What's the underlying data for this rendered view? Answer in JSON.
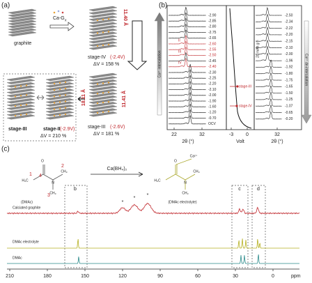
{
  "a": {
    "label": "(a)",
    "graphite": "graphite",
    "reagent": "Ca-G",
    "reagent_sub": "x",
    "stage4": {
      "name": "stage-IV",
      "voltage": "(-2.4V)",
      "dv": "ΔV = 158 %",
      "spacing": "11.40 Å"
    },
    "stage3": {
      "name": "stage-III",
      "voltage": "(-2.6V)",
      "dv": "ΔV = 181 %",
      "spacing": "11.41 Å",
      "spacing2": "18.11 Å"
    },
    "stage2": {
      "name": "stage-II",
      "voltage": "(-2.9V)",
      "dv": "ΔV = 210 %",
      "other": "stage-III"
    }
  },
  "b": {
    "label": "(b)",
    "left_voltages": [
      "-2.90",
      "-2.85",
      "-2.80",
      "-2.75",
      "-2.65",
      "-2.60",
      "-2.55",
      "-2.50",
      "-2.45",
      "-2.40",
      "-2.30",
      "-2.25",
      "-2.20",
      "-2.10",
      "-2.00",
      "-1.90",
      "-1.60",
      "-1.20",
      "-0.70",
      "OCV"
    ],
    "right_voltages": [
      "-2.50",
      "-2.34",
      "-2.22",
      "-2.20",
      "-2.15",
      "-2.10",
      "-2.00",
      "-1.96",
      "-1.92",
      "-1.80",
      "-1.75",
      "-1.65",
      "-1.50",
      "-1.25",
      "-1.07",
      "-0.65",
      "-0.20"
    ],
    "roman": [
      "II",
      "III",
      "IV"
    ],
    "intercalation": "Ca²⁺ intercalation",
    "deintercalation": "Ca²⁺ de-intercalation",
    "stage_marks": [
      "stage-III",
      "stage-IV"
    ],
    "capacity": "20 mAh g⁻¹",
    "xlabel": "2θ (°)",
    "vlabel": "Volt",
    "left_ticks": [
      22,
      32
    ],
    "volt_ticks": [
      -3,
      0
    ],
    "right_ticks": [
      32
    ]
  },
  "c": {
    "label": "(c)",
    "dmac": "(DMAc)",
    "reagent": "Ca(BH₄)₂",
    "product": "(DMAc electrolyte)",
    "atoms": [
      "1",
      "2",
      "3",
      "4"
    ],
    "mol_left": [
      "O",
      "N",
      "H₃C",
      "CH₃",
      "CH₃"
    ],
    "mol_right": [
      "O",
      "Ca²⁺",
      "N",
      "H₃C",
      "CH₃",
      "CH₃"
    ],
    "traces": [
      "Calciated graphite",
      "DMAc electrolyte",
      "DMAc"
    ],
    "regions": [
      "b",
      "c",
      "d"
    ],
    "stars": [
      "*",
      "*",
      "*"
    ],
    "xticks": [
      210,
      180,
      150,
      120,
      90,
      60,
      30,
      0
    ],
    "unit": "ppm"
  }
}
